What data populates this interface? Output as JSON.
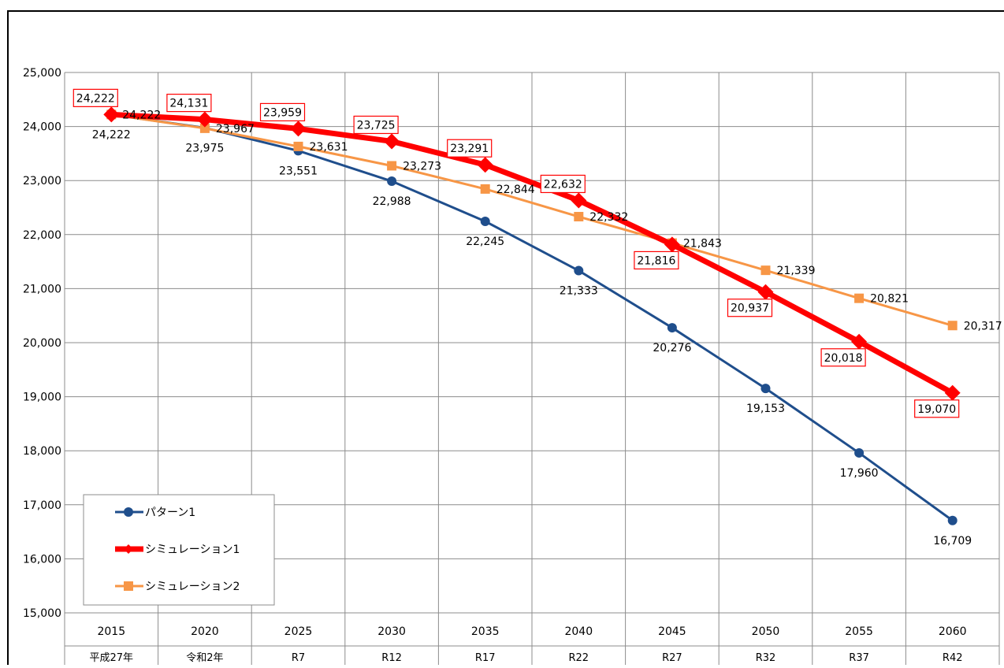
{
  "chart_data": {
    "type": "line",
    "title": "",
    "xlabel": "",
    "ylabel": "",
    "ylim": [
      15000,
      25000
    ],
    "y_ticks": [
      "15,000",
      "16,000",
      "17,000",
      "18,000",
      "19,000",
      "20,000",
      "21,000",
      "22,000",
      "23,000",
      "24,000",
      "25,000"
    ],
    "grid": true,
    "legend_position": "bottom-left",
    "categories": [
      "2015",
      "2020",
      "2025",
      "2030",
      "2035",
      "2040",
      "2045",
      "2050",
      "2055",
      "2060"
    ],
    "era_labels": [
      "平成27年",
      "令和2年",
      "R7",
      "R12",
      "R17",
      "R22",
      "R27",
      "R32",
      "R37",
      "R42"
    ],
    "series": [
      {
        "name": "パターン1",
        "color": "#1f4e8c",
        "marker": "circle",
        "values": [
          24222,
          23975,
          23551,
          22988,
          22245,
          21333,
          20276,
          19153,
          17960,
          16709
        ],
        "labels": [
          "24,222",
          "23,975",
          "23,551",
          "22,988",
          "22,245",
          "21,333",
          "20,276",
          "19,153",
          "17,960",
          "16,709"
        ]
      },
      {
        "name": "シミュレーション1",
        "color": "#ff0000",
        "marker": "diamond",
        "values": [
          24222,
          24131,
          23959,
          23725,
          23291,
          22632,
          21816,
          20937,
          20018,
          19070
        ],
        "labels": [
          "24,222",
          "24,131",
          "23,959",
          "23,725",
          "23,291",
          "22,632",
          "21,816",
          "20,937",
          "20,018",
          "19,070"
        ]
      },
      {
        "name": "シミュレーション2",
        "color": "#f79646",
        "marker": "square",
        "values": [
          24222,
          23967,
          23631,
          23273,
          22844,
          22332,
          21843,
          21339,
          20821,
          20317
        ],
        "labels": [
          "24,222",
          "23,967",
          "23,631",
          "23,273",
          "22,844",
          "22,332",
          "21,843",
          "21,339",
          "20,821",
          "20,317"
        ]
      }
    ]
  }
}
